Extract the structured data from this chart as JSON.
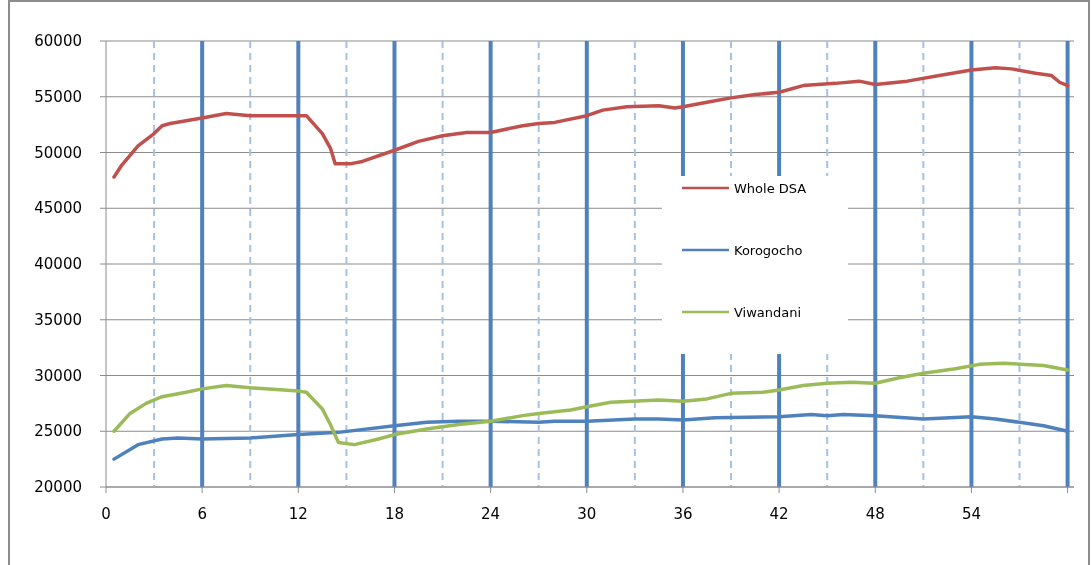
{
  "chart_data": {
    "type": "line",
    "xlim": [
      0,
      60.4
    ],
    "xticks": [
      0,
      6,
      12,
      18,
      24,
      30,
      36,
      42,
      48,
      54,
      {
        "value": 60,
        "label": null
      }
    ],
    "ylim": [
      20000,
      60000
    ],
    "yticks": [
      20000,
      25000,
      30000,
      35000,
      40000,
      45000,
      50000,
      55000,
      60000
    ],
    "grid": "y",
    "legend": "right",
    "series": [
      {
        "name": "Whole DSA",
        "color": "#c0504d",
        "x": [
          0.5,
          1,
          2,
          3,
          3.5,
          4,
          6,
          7.5,
          9,
          11,
          12.5,
          13.5,
          14,
          14.3,
          15.3,
          16,
          18,
          19.5,
          21,
          22.5,
          24,
          26,
          27,
          28,
          30,
          31,
          32.5,
          34.5,
          35.5,
          36,
          37.5,
          39,
          40.5,
          42,
          43.5,
          45.5,
          47,
          48,
          50,
          52,
          54,
          55.5,
          56.5,
          58,
          59,
          59.5,
          60
        ],
        "values": [
          47800,
          48900,
          50600,
          51700,
          52400,
          52600,
          53100,
          53500,
          53300,
          53300,
          53300,
          51700,
          50400,
          49000,
          49000,
          49200,
          50200,
          51000,
          51500,
          51800,
          51800,
          52400,
          52600,
          52700,
          53300,
          53800,
          54100,
          54200,
          54000,
          54100,
          54500,
          54900,
          55200,
          55400,
          56000,
          56200,
          56400,
          56100,
          56400,
          56900,
          57400,
          57600,
          57500,
          57100,
          56900,
          56300,
          56000
        ]
      },
      {
        "name": "Korogocho",
        "color": "#4f81bd",
        "x": [
          0.5,
          2,
          3.5,
          4.5,
          6,
          9,
          12,
          14.5,
          18,
          20,
          22,
          24,
          27,
          28,
          30,
          33,
          34.5,
          36,
          38,
          42,
          44,
          45,
          46,
          48,
          51,
          54,
          55.5,
          58.5,
          60
        ],
        "values": [
          22500,
          23800,
          24300,
          24400,
          24300,
          24400,
          24700,
          24900,
          25500,
          25800,
          25900,
          25900,
          25800,
          25900,
          25900,
          26100,
          26100,
          26000,
          26200,
          26300,
          26500,
          26400,
          26500,
          26400,
          26100,
          26300,
          26100,
          25500,
          25000
        ]
      },
      {
        "name": "Viwandani",
        "color": "#9bbb59",
        "x": [
          0.5,
          1.5,
          2.5,
          3.5,
          5,
          6,
          7.5,
          9,
          12,
          12.5,
          13.5,
          14,
          14.5,
          15.5,
          17,
          18,
          20,
          22,
          24,
          26,
          27,
          29,
          30,
          31.5,
          34.5,
          36,
          37.5,
          39,
          41,
          42,
          43.5,
          45,
          46.5,
          48,
          49.5,
          51,
          53,
          54.5,
          56,
          58.5,
          60
        ],
        "values": [
          25000,
          26600,
          27500,
          28100,
          28500,
          28800,
          29100,
          28900,
          28600,
          28500,
          27000,
          25600,
          24000,
          23800,
          24300,
          24700,
          25200,
          25600,
          25900,
          26400,
          26600,
          26900,
          27200,
          27600,
          27800,
          27700,
          27900,
          28400,
          28500,
          28700,
          29100,
          29300,
          29400,
          29300,
          29800,
          30200,
          30600,
          31000,
          31100,
          30900,
          30500
        ]
      }
    ],
    "ref_lines": [
      {
        "axis": "x",
        "value": 3,
        "color": "#a7c1e6",
        "line_style": "dashed"
      },
      {
        "axis": "x",
        "value": 6,
        "color": "#4f81bd",
        "line_style": "solid"
      },
      {
        "axis": "x",
        "value": 9,
        "color": "#a7c1e6",
        "line_style": "dashed"
      },
      {
        "axis": "x",
        "value": 12,
        "color": "#4f81bd",
        "line_style": "solid"
      },
      {
        "axis": "x",
        "value": 15,
        "color": "#a7c1e6",
        "line_style": "dashed"
      },
      {
        "axis": "x",
        "value": 18,
        "color": "#4f81bd",
        "line_style": "solid"
      },
      {
        "axis": "x",
        "value": 21,
        "color": "#a7c1e6",
        "line_style": "dashed"
      },
      {
        "axis": "x",
        "value": 24,
        "color": "#4f81bd",
        "line_style": "solid"
      },
      {
        "axis": "x",
        "value": 27,
        "color": "#a7c1e6",
        "line_style": "dashed"
      },
      {
        "axis": "x",
        "value": 30,
        "color": "#4f81bd",
        "line_style": "solid"
      },
      {
        "axis": "x",
        "value": 33,
        "color": "#a7c1e6",
        "line_style": "dashed"
      },
      {
        "axis": "x",
        "value": 36,
        "color": "#4f81bd",
        "line_style": "solid"
      },
      {
        "axis": "x",
        "value": 39,
        "color": "#a7c1e6",
        "line_style": "dashed"
      },
      {
        "axis": "x",
        "value": 42,
        "color": "#4f81bd",
        "line_style": "solid"
      },
      {
        "axis": "x",
        "value": 45,
        "color": "#a7c1e6",
        "line_style": "dashed"
      },
      {
        "axis": "x",
        "value": 48,
        "color": "#4f81bd",
        "line_style": "solid"
      },
      {
        "axis": "x",
        "value": 51,
        "color": "#a7c1e6",
        "line_style": "dashed"
      },
      {
        "axis": "x",
        "value": 54,
        "color": "#4f81bd",
        "line_style": "solid"
      },
      {
        "axis": "x",
        "value": 57,
        "color": "#a7c1e6",
        "line_style": "dashed"
      },
      {
        "axis": "x",
        "value": 60,
        "color": "#4f81bd",
        "line_style": "solid"
      }
    ]
  }
}
